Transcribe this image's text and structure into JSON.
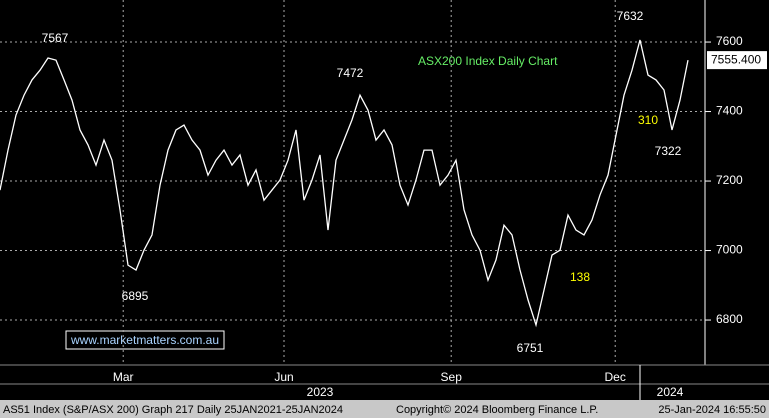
{
  "chart_data": {
    "type": "line",
    "title": "ASX200 Index Daily Chart",
    "values": [
      7174,
      7289,
      7390,
      7447,
      7491,
      7519,
      7554,
      7548,
      7491,
      7433,
      7347,
      7304,
      7246,
      7318,
      7260,
      7117,
      6958,
      6944,
      7001,
      7045,
      7188,
      7289,
      7347,
      7361,
      7318,
      7289,
      7217,
      7260,
      7289,
      7246,
      7275,
      7188,
      7232,
      7145,
      7174,
      7203,
      7260,
      7347,
      7145,
      7203,
      7275,
      7059,
      7260,
      7318,
      7376,
      7447,
      7404,
      7318,
      7347,
      7304,
      7188,
      7131,
      7203,
      7289,
      7289,
      7188,
      7217,
      7260,
      7117,
      7045,
      7001,
      6915,
      6973,
      7073,
      7045,
      6944,
      6858,
      6786,
      6886,
      6987,
      7001,
      7102,
      7059,
      7045,
      7088,
      7160,
      7217,
      7332,
      7447,
      7519,
      7606,
      7505,
      7491,
      7462,
      7347,
      7433,
      7548
    ],
    "color": "#ffffff",
    "xlim": [
      0,
      88
    ],
    "xticks": [
      {
        "value": 15.4,
        "label": "Mar"
      },
      {
        "value": 35.5,
        "label": "Jun"
      },
      {
        "value": 56.4,
        "label": "Sep"
      },
      {
        "value": 76.9,
        "label": "Dec"
      }
    ],
    "years": [
      "2023",
      "2024"
    ],
    "ylim": [
      6685,
      7721
    ],
    "yticks": [
      6800,
      7000,
      7200,
      7400,
      7600
    ],
    "grid": true,
    "last_label": "7555.400",
    "annotations": [
      {
        "text": "7567",
        "color": "#ffffff"
      },
      {
        "text": "7472",
        "color": "#ffffff"
      },
      {
        "text": "6895",
        "color": "#ffffff"
      },
      {
        "text": "6751",
        "color": "#ffffff"
      },
      {
        "text": "7632",
        "color": "#ffffff"
      },
      {
        "text": "7322",
        "color": "#ffffff"
      },
      {
        "text": "310",
        "color": "#ffff00"
      },
      {
        "text": "138",
        "color": "#ffff00"
      }
    ],
    "website": "www.marketmatters.com.au",
    "footer": [
      "AS51 Index (S&P/ASX 200) Graph 217  Daily 25JAN2021-25JAN2024",
      "Copyright© 2024 Bloomberg Finance L.P.",
      "25-Jan-2024 16:55:50"
    ]
  }
}
